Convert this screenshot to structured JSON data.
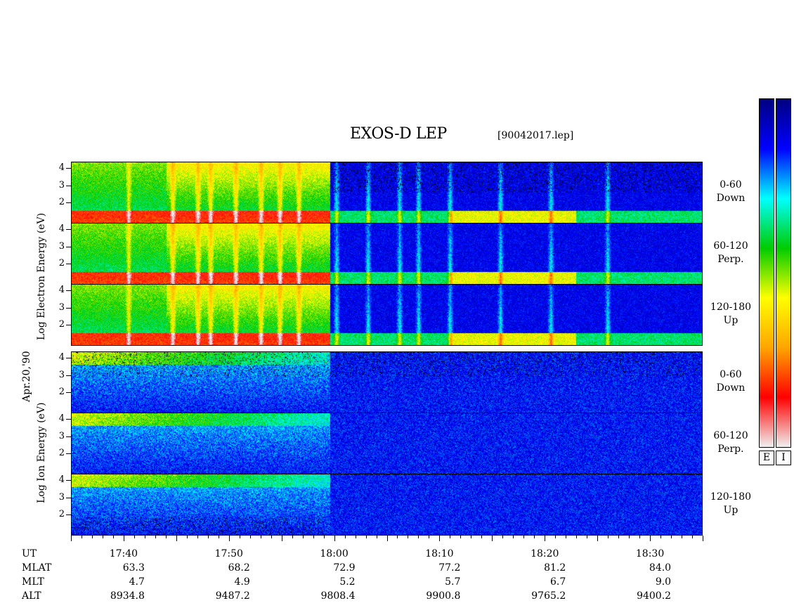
{
  "title": "EXOS-D LEP",
  "filename": "[90042017.lep]",
  "date_label": "Apr.20,'90",
  "electron_axis_label": "Log Electron Energy (eV)",
  "ion_axis_label": "Log Ion Energy (eV)",
  "colorbars": {
    "electron_label": "E",
    "ion_label": "I"
  },
  "chart_data": {
    "type": "heatmap",
    "title": "EXOS-D LEP",
    "x_axis": {
      "label": "UT",
      "range": [
        "17:35",
        "18:35"
      ],
      "major_ticks": [
        "17:40",
        "17:50",
        "18:00",
        "18:10",
        "18:20",
        "18:30"
      ]
    },
    "y_axis": {
      "label": "Log Energy (eV)",
      "tick_labels": [
        "2",
        "3",
        "4"
      ],
      "range": [
        1,
        4.2
      ]
    },
    "panels": [
      {
        "species": "Electron",
        "pitch_angle": "0-60",
        "direction": "Down"
      },
      {
        "species": "Electron",
        "pitch_angle": "60-120",
        "direction": "Perp."
      },
      {
        "species": "Electron",
        "pitch_angle": "120-180",
        "direction": "Up"
      },
      {
        "species": "Ion",
        "pitch_angle": "0-60",
        "direction": "Down"
      },
      {
        "species": "Ion",
        "pitch_angle": "60-120",
        "direction": "Perp."
      },
      {
        "species": "Ion",
        "pitch_angle": "120-180",
        "direction": "Up"
      }
    ],
    "orbit_table": {
      "labels": [
        "UT",
        "MLAT",
        "MLT",
        "ALT"
      ],
      "columns": [
        {
          "UT": "17:40",
          "MLAT": "63.3",
          "MLT": "4.7",
          "ALT": "8934.8"
        },
        {
          "UT": "17:50",
          "MLAT": "68.2",
          "MLT": "4.9",
          "ALT": "9487.2"
        },
        {
          "UT": "18:00",
          "MLAT": "72.9",
          "MLT": "5.2",
          "ALT": "9808.4"
        },
        {
          "UT": "18:10",
          "MLAT": "77.2",
          "MLT": "5.7",
          "ALT": "9900.8"
        },
        {
          "UT": "18:20",
          "MLAT": "81.2",
          "MLT": "6.7",
          "ALT": "9765.2"
        },
        {
          "UT": "18:30",
          "MLAT": "84.0",
          "MLT": "9.0",
          "ALT": "9400.2"
        }
      ]
    },
    "colorscale": [
      "#f0f0f0",
      "#ff0000",
      "#ffa500",
      "#ffff00",
      "#00cc00",
      "#00ffff",
      "#0000ff",
      "#000080"
    ]
  }
}
